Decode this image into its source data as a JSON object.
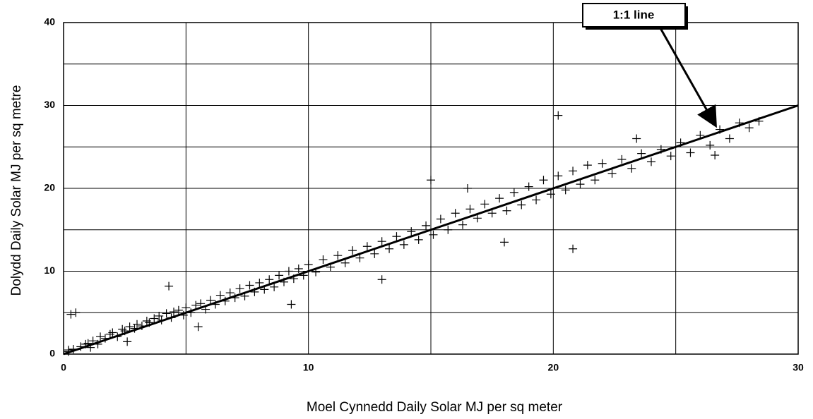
{
  "chart_data": {
    "type": "scatter",
    "x_label": "Moel Cynnedd Daily Solar MJ per sq meter",
    "y_label": "Dolydd Daily Solar MJ per sq metre",
    "annotation": "1:1 line",
    "xlim": [
      0,
      30
    ],
    "ylim": [
      0,
      40
    ],
    "xticks": [
      0,
      10,
      20,
      30
    ],
    "yticks": [
      0,
      10,
      20,
      30,
      40
    ],
    "x_minor_grid": [
      5,
      15,
      25
    ],
    "y_minor_grid": [
      5,
      15,
      25,
      35
    ],
    "grid": true,
    "color": "#000000",
    "reference_line": {
      "x": [
        0,
        30
      ],
      "y": [
        0,
        30
      ]
    },
    "x": [
      0.2,
      0.4,
      0.5,
      0.7,
      0.9,
      1.0,
      1.2,
      1.4,
      1.5,
      1.7,
      1.9,
      2.0,
      2.2,
      2.4,
      2.5,
      2.7,
      2.9,
      3.0,
      3.2,
      3.4,
      3.5,
      3.7,
      3.9,
      4.0,
      4.2,
      4.4,
      4.5,
      4.7,
      4.9,
      5.0,
      5.2,
      5.4,
      5.6,
      5.8,
      6.0,
      6.2,
      6.4,
      6.6,
      6.8,
      7.0,
      7.2,
      7.4,
      7.6,
      7.8,
      8.0,
      8.2,
      8.4,
      8.6,
      8.8,
      9.0,
      9.2,
      9.4,
      9.6,
      9.8,
      10.0,
      10.3,
      10.6,
      10.9,
      11.2,
      11.5,
      11.8,
      12.1,
      12.4,
      12.7,
      13.0,
      13.3,
      13.6,
      13.9,
      14.2,
      14.5,
      14.8,
      15.1,
      15.4,
      15.7,
      16.0,
      16.3,
      16.6,
      16.9,
      17.2,
      17.5,
      17.8,
      18.1,
      18.4,
      18.7,
      19.0,
      19.3,
      19.6,
      19.9,
      20.2,
      20.5,
      20.8,
      21.1,
      21.4,
      21.7,
      22.0,
      22.4,
      22.8,
      23.2,
      23.6,
      24.0,
      24.4,
      24.8,
      25.2,
      25.6,
      26.0,
      26.4,
      26.8,
      27.2,
      27.6,
      28.0,
      28.4,
      0.3,
      1.1,
      2.6,
      4.3,
      9.3,
      15.0,
      20.8,
      20.2,
      18.0,
      13.0,
      5.5,
      0.2,
      16.5,
      23.4,
      26.6
    ],
    "y": [
      0.3,
      0.6,
      5.0,
      0.9,
      1.2,
      1.3,
      1.6,
      1.2,
      2.1,
      1.9,
      2.4,
      2.6,
      2.1,
      3.0,
      2.8,
      3.3,
      3.1,
      3.6,
      3.4,
      4.0,
      3.8,
      4.3,
      4.6,
      4.1,
      4.9,
      4.4,
      5.1,
      5.3,
      4.7,
      5.6,
      5.0,
      5.9,
      6.1,
      5.4,
      6.5,
      6.0,
      7.1,
      6.4,
      7.4,
      6.8,
      7.9,
      7.0,
      8.3,
      7.5,
      8.6,
      7.8,
      9.0,
      8.1,
      9.5,
      8.7,
      10.0,
      9.1,
      10.3,
      9.5,
      10.8,
      9.9,
      11.4,
      10.5,
      11.9,
      11.0,
      12.5,
      11.6,
      13.0,
      12.1,
      13.6,
      12.7,
      14.2,
      13.2,
      14.8,
      13.8,
      15.5,
      14.4,
      16.3,
      15.0,
      17.0,
      15.6,
      17.5,
      16.4,
      18.1,
      17.0,
      18.8,
      17.3,
      19.5,
      18.0,
      20.2,
      18.6,
      21.0,
      19.3,
      21.5,
      19.8,
      22.1,
      20.5,
      22.8,
      21.0,
      23.0,
      21.8,
      23.5,
      22.4,
      24.2,
      23.2,
      24.7,
      23.9,
      25.5,
      24.3,
      26.4,
      25.2,
      27.1,
      26.0,
      27.9,
      27.3,
      28.1,
      4.8,
      0.8,
      1.5,
      8.2,
      6.0,
      21.0,
      12.7,
      28.8,
      13.5,
      9.0,
      3.3,
      0.5,
      20.0,
      26.0,
      24.0
    ]
  }
}
